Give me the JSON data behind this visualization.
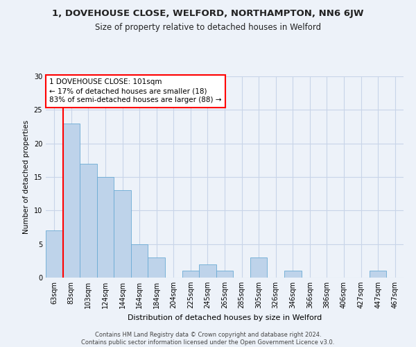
{
  "title": "1, DOVEHOUSE CLOSE, WELFORD, NORTHAMPTON, NN6 6JW",
  "subtitle": "Size of property relative to detached houses in Welford",
  "xlabel": "Distribution of detached houses by size in Welford",
  "ylabel": "Number of detached properties",
  "categories": [
    "63sqm",
    "83sqm",
    "103sqm",
    "124sqm",
    "144sqm",
    "164sqm",
    "184sqm",
    "204sqm",
    "225sqm",
    "245sqm",
    "265sqm",
    "285sqm",
    "305sqm",
    "326sqm",
    "346sqm",
    "366sqm",
    "386sqm",
    "406sqm",
    "427sqm",
    "447sqm",
    "467sqm"
  ],
  "values": [
    7,
    23,
    17,
    15,
    13,
    5,
    3,
    0,
    1,
    2,
    1,
    0,
    3,
    0,
    1,
    0,
    0,
    0,
    0,
    1,
    0
  ],
  "bar_color": "#bed3ea",
  "bar_edge_color": "#6aaad4",
  "annotation_box_text": "1 DOVEHOUSE CLOSE: 101sqm\n← 17% of detached houses are smaller (18)\n83% of semi-detached houses are larger (88) →",
  "annotation_box_color": "white",
  "annotation_box_edge_color": "red",
  "property_line_x": 0.5,
  "ylim": [
    0,
    30
  ],
  "yticks": [
    0,
    5,
    10,
    15,
    20,
    25,
    30
  ],
  "bg_color": "#edf2f9",
  "grid_color": "#c8d4e8",
  "footer_line1": "Contains HM Land Registry data © Crown copyright and database right 2024.",
  "footer_line2": "Contains public sector information licensed under the Open Government Licence v3.0."
}
